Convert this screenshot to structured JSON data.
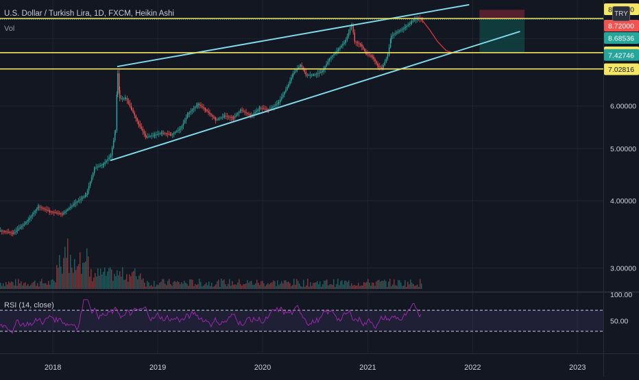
{
  "header": {
    "title": "U.S. Dollar / Turkish Lira, 1D, FXCM, Heikin Ashi",
    "volume_label": "Vol",
    "currency_badge": "TRY"
  },
  "rsi": {
    "label": "RSI (14, close)",
    "ticks": [
      "100.00",
      "50.00"
    ]
  },
  "price_axis": {
    "ticks": [
      "8.00000",
      "6.00000",
      "5.00000",
      "4.00000",
      "3.00000"
    ]
  },
  "price_labels": [
    {
      "value": "8.74940",
      "color": "#f5e663"
    },
    {
      "value": "8.72000",
      "color": "#f05350"
    },
    {
      "value": "8.68536",
      "color": "#26a69a"
    },
    {
      "value": "7.53306",
      "color": "#f5e663"
    },
    {
      "value": "7.42746",
      "color": "#26a69a"
    },
    {
      "value": "7.02816",
      "color": "#f5e663"
    }
  ],
  "time_axis": {
    "ticks": [
      "2018",
      "2019",
      "2020",
      "2021",
      "2022",
      "2023"
    ]
  },
  "colors": {
    "background": "#131722",
    "up": "#26a69a",
    "down": "#ef5350",
    "channel": "#80d8e8",
    "hline": "#f5e663",
    "rsi": "#9c27b0",
    "projection": "#e53935"
  },
  "chart_data": {
    "type": "line",
    "scale": "log",
    "x_range": [
      "2017-07-01",
      "2023-04-01"
    ],
    "y_range": [
      2.8,
      9.3
    ],
    "series": [
      {
        "values": [
          [
            "2017-07-01",
            3.52
          ],
          [
            "2017-08-15",
            3.48
          ],
          [
            "2017-10-01",
            3.66
          ],
          [
            "2017-11-10",
            3.9
          ],
          [
            "2017-12-20",
            3.82
          ],
          [
            "2018-02-01",
            3.78
          ],
          [
            "2018-03-15",
            3.95
          ],
          [
            "2018-04-25",
            4.1
          ],
          [
            "2018-05-25",
            4.6
          ],
          [
            "2018-06-25",
            4.68
          ],
          [
            "2018-07-20",
            4.85
          ],
          [
            "2018-08-05",
            5.4
          ],
          [
            "2018-08-13",
            6.9
          ],
          [
            "2018-08-20",
            6.2
          ],
          [
            "2018-09-10",
            6.2
          ],
          [
            "2018-10-01",
            5.9
          ],
          [
            "2018-10-25",
            5.55
          ],
          [
            "2018-11-20",
            5.25
          ],
          [
            "2018-12-20",
            5.3
          ],
          [
            "2019-01-15",
            5.35
          ],
          [
            "2019-02-15",
            5.3
          ],
          [
            "2019-03-20",
            5.45
          ],
          [
            "2019-04-15",
            5.8
          ],
          [
            "2019-05-20",
            6.05
          ],
          [
            "2019-06-15",
            5.9
          ],
          [
            "2019-07-20",
            5.65
          ],
          [
            "2019-08-20",
            5.75
          ],
          [
            "2019-09-20",
            5.7
          ],
          [
            "2019-10-15",
            5.9
          ],
          [
            "2019-11-20",
            5.75
          ],
          [
            "2019-12-20",
            5.95
          ],
          [
            "2020-01-20",
            5.9
          ],
          [
            "2020-02-25",
            6.1
          ],
          [
            "2020-03-25",
            6.5
          ],
          [
            "2020-04-15",
            6.9
          ],
          [
            "2020-05-10",
            7.15
          ],
          [
            "2020-05-30",
            6.85
          ],
          [
            "2020-06-25",
            6.85
          ],
          [
            "2020-07-25",
            6.95
          ],
          [
            "2020-08-20",
            7.35
          ],
          [
            "2020-09-20",
            7.65
          ],
          [
            "2020-10-15",
            7.95
          ],
          [
            "2020-11-05",
            8.5
          ],
          [
            "2020-11-15",
            7.9
          ],
          [
            "2020-12-05",
            7.8
          ],
          [
            "2020-12-25",
            7.5
          ],
          [
            "2021-01-15",
            7.4
          ],
          [
            "2021-02-05",
            7.1
          ],
          [
            "2021-02-18",
            7.05
          ],
          [
            "2021-03-10",
            7.45
          ],
          [
            "2021-03-22",
            8.1
          ],
          [
            "2021-04-15",
            8.25
          ],
          [
            "2021-05-10",
            8.4
          ],
          [
            "2021-06-01",
            8.6
          ],
          [
            "2021-06-20",
            8.75
          ],
          [
            "2021-07-10",
            8.65
          ]
        ]
      },
      {
        "values": [
          [
            "2021-07-10",
            8.65
          ],
          [
            "2021-08-05",
            8.3
          ],
          [
            "2021-09-01",
            7.9
          ],
          [
            "2021-10-01",
            7.6
          ],
          [
            "2021-10-25",
            7.53
          ]
        ]
      }
    ],
    "channel_lines": [
      {
        "from": [
          "2018-07-20",
          4.75
        ],
        "to": [
          "2022-06-15",
          8.25
        ]
      },
      {
        "from": [
          "2018-08-13",
          7.1
        ],
        "to": [
          "2021-12-20",
          9.25
        ]
      }
    ],
    "horizontal_levels": [
      8.72,
      7.53306,
      7.02816
    ],
    "position_box": {
      "x_from": "2022-01-25",
      "x_to": "2022-07-01",
      "entry": 8.68536,
      "stop": 9.05,
      "target": 7.53306
    },
    "rsi_levels": [
      70,
      30
    ],
    "rsi_range": [
      0,
      100
    ]
  }
}
